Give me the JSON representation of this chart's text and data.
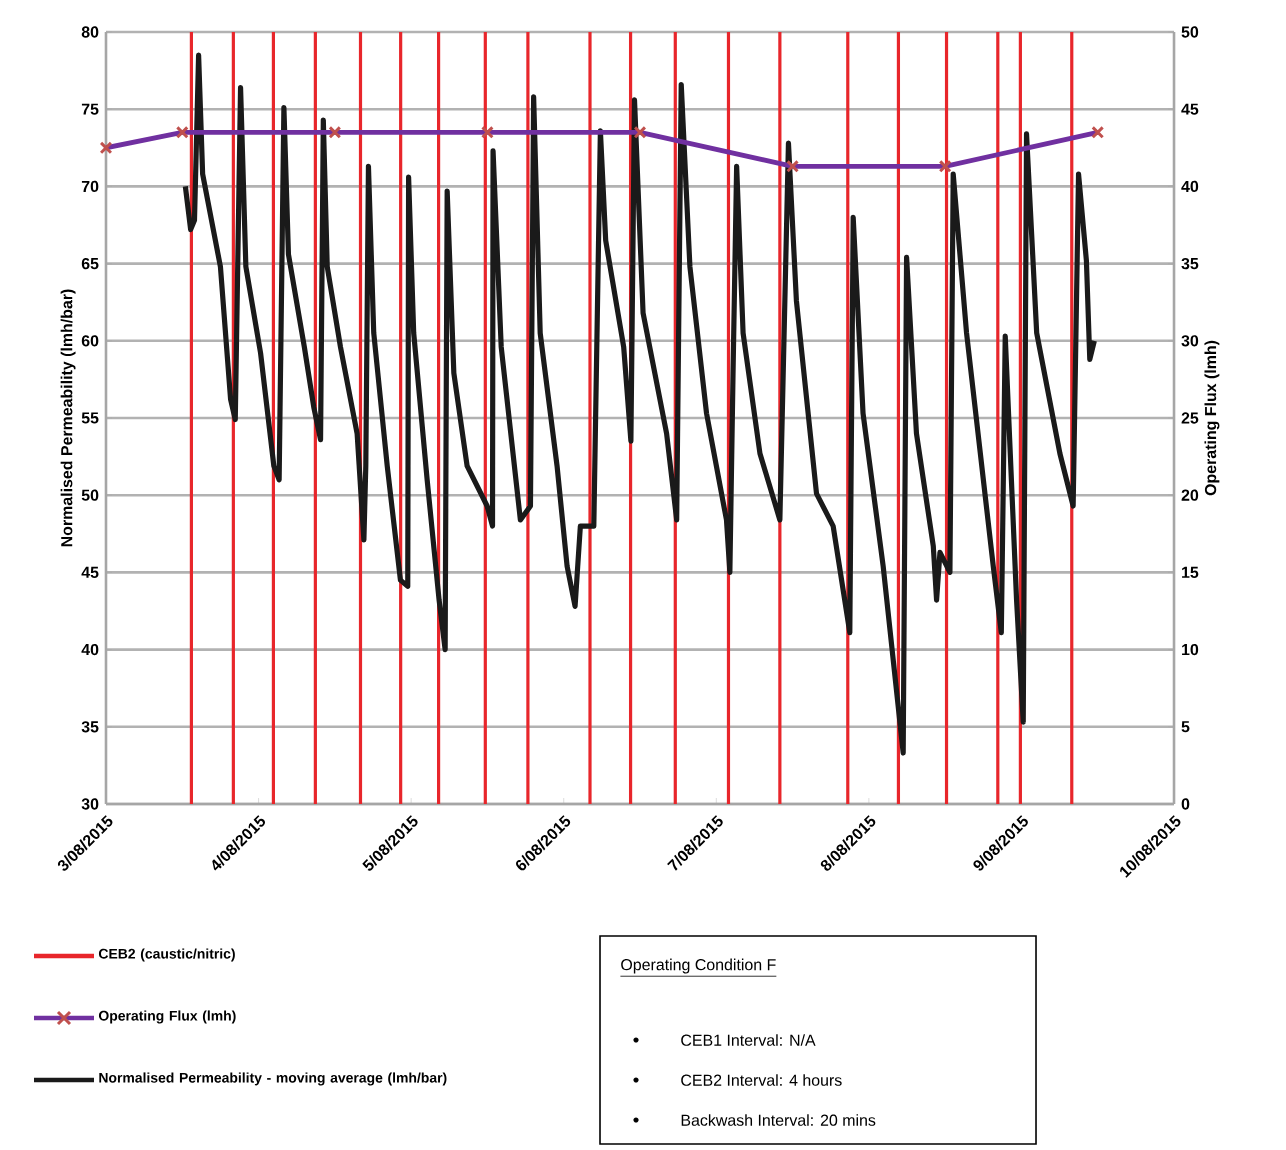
{
  "chart_data": {
    "type": "line",
    "ylabel": "Normalised Permeability (lmh/bar)",
    "y2label": "Operating Flux (lmh)",
    "xlim": [
      "2015-08-03",
      "2015-08-10"
    ],
    "xticks": [
      {
        "value": "2015-08-03",
        "label": "3/08/2015"
      },
      {
        "value": "2015-08-04",
        "label": "4/08/2015"
      },
      {
        "value": "2015-08-05",
        "label": "5/08/2015"
      },
      {
        "value": "2015-08-06",
        "label": "6/08/2015"
      },
      {
        "value": "2015-08-07",
        "label": "7/08/2015"
      },
      {
        "value": "2015-08-08",
        "label": "8/08/2015"
      },
      {
        "value": "2015-08-09",
        "label": "9/08/2015"
      },
      {
        "value": "2015-08-10",
        "label": "10/08/2015"
      }
    ],
    "ylim": [
      30,
      80
    ],
    "yticks": [
      30,
      35,
      40,
      45,
      50,
      55,
      60,
      65,
      70,
      75,
      80
    ],
    "y2lim": [
      0,
      50
    ],
    "y2ticks": [
      0,
      5,
      10,
      15,
      20,
      25,
      30,
      35,
      40,
      45,
      50
    ],
    "grid": "y",
    "legend": "bottom",
    "series": [
      {
        "name": "Operating Flux (lmh)",
        "color": "#7030a0",
        "axis": "y2",
        "marker": "cross",
        "x": [
          "2015-08-03T00:00",
          "2015-08-03T12:00",
          "2015-08-04T12:00",
          "2015-08-05T12:00",
          "2015-08-06T12:00",
          "2015-08-07T12:00",
          "2015-08-08T12:00",
          "2015-08-09T12:00"
        ],
        "values": [
          42.5,
          43.5,
          43.5,
          43.5,
          43.5,
          41.3,
          41.3,
          43.5
        ]
      },
      {
        "name": "Normalised Permeability - moving average (lmh/bar)",
        "color": "#1a1a1a",
        "marker": "none",
        "x": [
          "2015-08-03T12:29",
          "2015-08-03T13:19",
          "2015-08-03T13:55",
          "2015-08-03T14:34",
          "2015-08-03T15:12",
          "2015-08-03T18:00",
          "2015-08-03T19:36",
          "2015-08-03T20:20",
          "2015-08-03T21:10",
          "2015-08-03T22:00",
          "2015-08-04T00:19",
          "2015-08-04T02:24",
          "2015-08-04T03:14",
          "2015-08-04T03:59",
          "2015-08-04T04:42",
          "2015-08-04T07:12",
          "2015-08-04T08:41",
          "2015-08-04T09:45",
          "2015-08-04T10:11",
          "2015-08-04T10:48",
          "2015-08-04T12:53",
          "2015-08-04T15:30",
          "2015-08-04T16:34",
          "2015-08-04T16:52",
          "2015-08-04T17:17",
          "2015-08-04T18:07",
          "2015-08-04T20:14",
          "2015-08-04T22:19",
          "2015-08-04T23:28",
          "2015-08-04T23:36",
          "2015-08-05T00:24",
          "2015-08-05T02:31",
          "2015-08-05T04:24",
          "2015-08-05T05:21",
          "2015-08-05T05:31",
          "2015-08-05T05:40",
          "2015-08-05T06:43",
          "2015-08-05T08:48",
          "2015-08-05T11:57",
          "2015-08-05T12:48",
          "2015-08-05T12:53",
          "2015-08-05T14:10",
          "2015-08-05T17:11",
          "2015-08-05T18:46",
          "2015-08-05T19:16",
          "2015-08-05T20:18",
          "2015-08-05T22:57",
          "2015-08-06T00:32",
          "2015-08-06T01:47",
          "2015-08-06T02:37",
          "2015-08-06T04:44",
          "2015-08-06T05:46",
          "2015-08-06T06:36",
          "2015-08-06T09:26",
          "2015-08-06T10:34",
          "2015-08-06T11:08",
          "2015-08-06T12:29",
          "2015-08-06T16:11",
          "2015-08-06T17:46",
          "2015-08-06T18:29",
          "2015-08-06T19:51",
          "2015-08-06T22:28",
          "2015-08-07T01:36",
          "2015-08-07T02:08",
          "2015-08-07T02:38",
          "2015-08-07T03:12",
          "2015-08-07T04:13",
          "2015-08-07T06:52",
          "2015-08-07T10:00",
          "2015-08-07T11:21",
          "2015-08-07T12:36",
          "2015-08-07T15:46",
          "2015-08-07T18:23",
          "2015-08-07T21:00",
          "2015-08-07T21:32",
          "2015-08-07T23:05",
          "2015-08-08T02:15",
          "2015-08-08T05:24",
          "2015-08-08T05:56",
          "2015-08-08T07:29",
          "2015-08-08T10:08",
          "2015-08-08T10:39",
          "2015-08-08T11:11",
          "2015-08-08T12:45",
          "2015-08-08T13:16",
          "2015-08-08T15:22",
          "2015-08-08T19:34",
          "2015-08-08T20:50",
          "2015-08-08T21:27",
          "2015-08-08T23:14",
          "2015-08-09T00:17",
          "2015-08-09T00:48",
          "2015-08-09T02:24",
          "2015-08-09T06:03",
          "2015-08-09T08:08",
          "2015-08-09T08:59",
          "2015-08-09T10:13",
          "2015-08-09T10:45",
          "2015-08-09T11:28"
        ],
        "values": [
          70,
          67.2,
          67.8,
          78.5,
          70.8,
          64.8,
          56.2,
          54.9,
          76.4,
          64.8,
          59.2,
          51.9,
          51.0,
          75.1,
          65.6,
          59.6,
          55.7,
          53.6,
          74.3,
          64.8,
          59.6,
          54.0,
          47.1,
          51.9,
          71.3,
          60.5,
          51.9,
          44.5,
          44.1,
          70.6,
          60.5,
          51.0,
          43.2,
          40.0,
          56.2,
          69.7,
          57.9,
          51.9,
          49.3,
          48.0,
          72.3,
          59.6,
          48.4,
          49.3,
          75.8,
          60.5,
          51.9,
          45.4,
          42.8,
          48.0,
          48.0,
          73.6,
          66.5,
          59.6,
          53.5,
          75.6,
          61.8,
          54.0,
          48.4,
          76.6,
          64.8,
          55.3,
          48.4,
          45.0,
          57.9,
          71.3,
          60.5,
          52.7,
          48.4,
          72.8,
          62.6,
          50.1,
          48.0,
          41.1,
          68.0,
          55.3,
          45.4,
          33.3,
          65.4,
          54.0,
          46.7,
          43.2,
          46.3,
          45.0,
          70.8,
          60.5,
          45.4,
          41.1,
          60.3,
          43.2,
          35.3,
          73.4,
          60.5,
          52.7,
          49.3,
          70.8,
          65.2,
          58.8,
          60.0
        ]
      }
    ],
    "ref_lines": [
      {
        "axis": "x",
        "value": "2015-08-03T13:26",
        "color": "#e8262b",
        "label": "CEB2 (caustic/nitric)"
      },
      {
        "axis": "x",
        "value": "2015-08-03T20:02",
        "color": "#e8262b"
      },
      {
        "axis": "x",
        "value": "2015-08-04T02:20",
        "color": "#e8262b"
      },
      {
        "axis": "x",
        "value": "2015-08-04T08:56",
        "color": "#e8262b"
      },
      {
        "axis": "x",
        "value": "2015-08-04T16:02",
        "color": "#e8262b"
      },
      {
        "axis": "x",
        "value": "2015-08-04T22:21",
        "color": "#e8262b"
      },
      {
        "axis": "x",
        "value": "2015-08-05T04:19",
        "color": "#e8262b"
      },
      {
        "axis": "x",
        "value": "2015-08-05T11:40",
        "color": "#e8262b"
      },
      {
        "axis": "x",
        "value": "2015-08-05T18:22",
        "color": "#e8262b"
      },
      {
        "axis": "x",
        "value": "2015-08-06T04:08",
        "color": "#e8262b"
      },
      {
        "axis": "x",
        "value": "2015-08-06T10:31",
        "color": "#e8262b"
      },
      {
        "axis": "x",
        "value": "2015-08-06T17:33",
        "color": "#e8262b"
      },
      {
        "axis": "x",
        "value": "2015-08-07T01:55",
        "color": "#e8262b"
      },
      {
        "axis": "x",
        "value": "2015-08-07T10:00",
        "color": "#e8262b"
      },
      {
        "axis": "x",
        "value": "2015-08-07T20:41",
        "color": "#e8262b"
      },
      {
        "axis": "x",
        "value": "2015-08-08T04:39",
        "color": "#e8262b"
      },
      {
        "axis": "x",
        "value": "2015-08-08T12:13",
        "color": "#e8262b"
      },
      {
        "axis": "x",
        "value": "2015-08-08T20:17",
        "color": "#e8262b"
      },
      {
        "axis": "x",
        "value": "2015-08-08T23:50",
        "color": "#e8262b"
      },
      {
        "axis": "x",
        "value": "2015-08-09T07:55",
        "color": "#e8262b"
      }
    ],
    "annotations": [
      "Operating Condition F",
      "CEB1 Interval: N/A",
      "CEB2 Interval: 4 hours",
      "Backwash Interval: 20 mins"
    ]
  }
}
